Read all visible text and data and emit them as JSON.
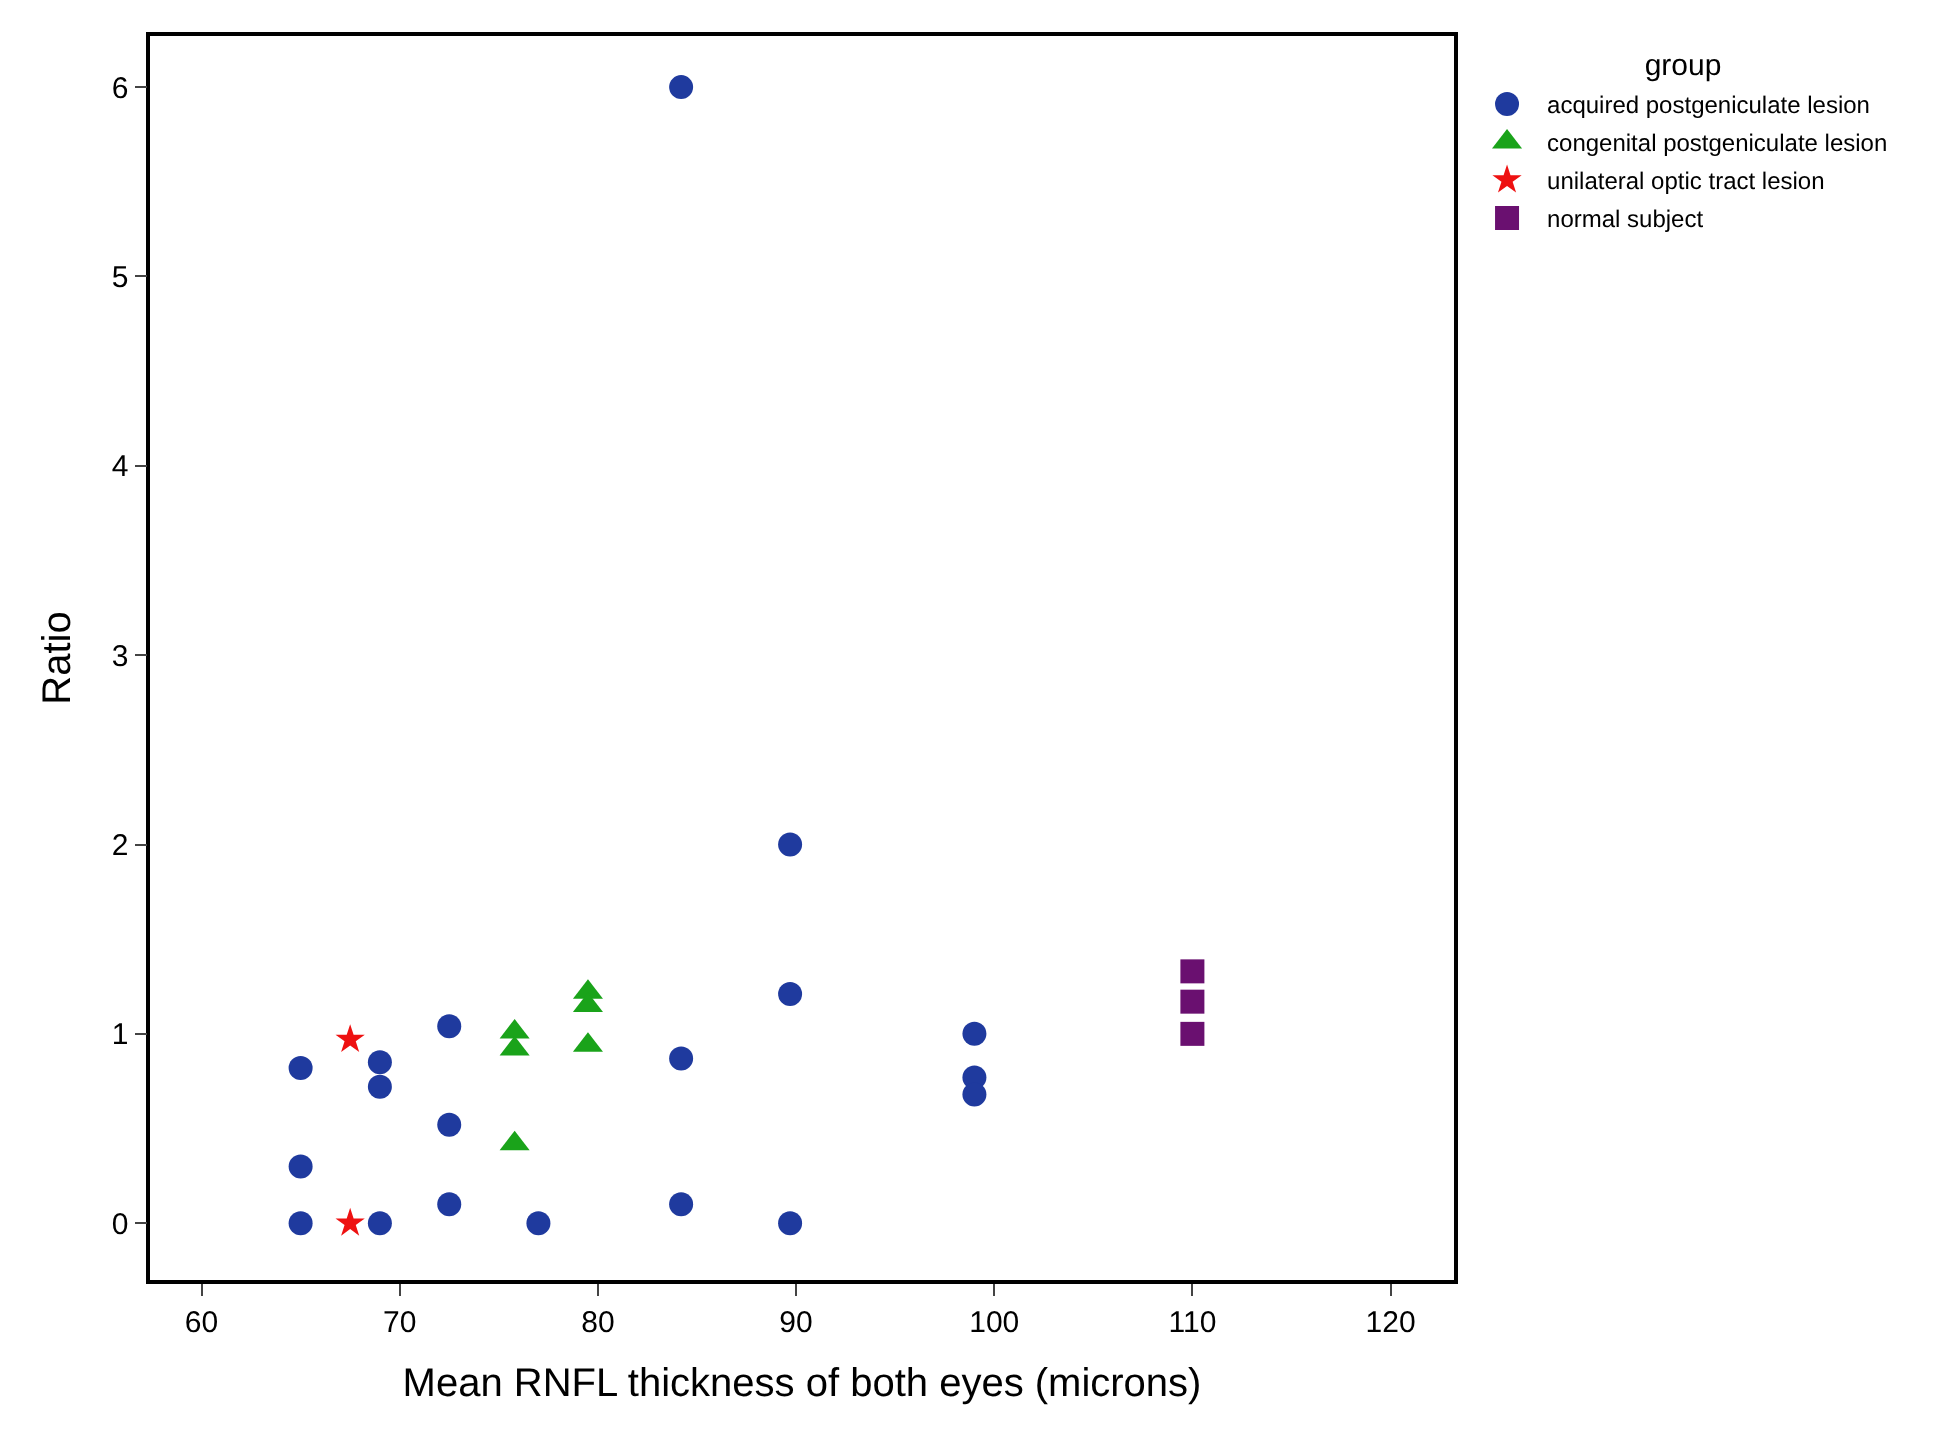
{
  "chart_data": {
    "type": "scatter",
    "xlabel": "Mean RNFL thickness of both eyes (microns)",
    "ylabel": "Ratio",
    "legend_title": "group",
    "legend": "top right",
    "xlim": [
      57.4,
      123.2
    ],
    "xticks": [
      60,
      70,
      80,
      90,
      100,
      110,
      120
    ],
    "ylim": [
      -0.3,
      6.27
    ],
    "yticks": [
      0,
      1,
      2,
      3,
      4,
      5,
      6
    ],
    "series": [
      {
        "name": "acquired postgeniculate lesion",
        "color": "#1f3a9e",
        "marker": "circle",
        "x": [
          65,
          65,
          65,
          69,
          69,
          69,
          72.5,
          72.5,
          72.5,
          77,
          84.2,
          84.2,
          84.2,
          89.7,
          89.7,
          89.7,
          99,
          99,
          99
        ],
        "values": [
          0.82,
          0.3,
          0.0,
          0.85,
          0.72,
          0.0,
          1.04,
          0.52,
          0.1,
          0.0,
          6.0,
          0.87,
          0.1,
          2.0,
          1.21,
          0.0,
          1.0,
          0.77,
          0.68
        ]
      },
      {
        "name": "congenital postgeniculate lesion",
        "color": "#1aa31a",
        "marker": "triangle",
        "x": [
          75.8,
          75.8,
          75.8,
          79.5,
          79.5,
          79.5
        ],
        "values": [
          1.01,
          0.92,
          0.42,
          1.22,
          1.15,
          0.94
        ]
      },
      {
        "name": "unilateral optic tract lesion",
        "color": "#ee1111",
        "marker": "star",
        "x": [
          67.5,
          67.5
        ],
        "values": [
          0.97,
          0.0
        ]
      },
      {
        "name": "normal subject",
        "color": "#6a1070",
        "marker": "square",
        "x": [
          110,
          110,
          110
        ],
        "values": [
          1.33,
          1.17,
          1.0
        ]
      }
    ]
  }
}
